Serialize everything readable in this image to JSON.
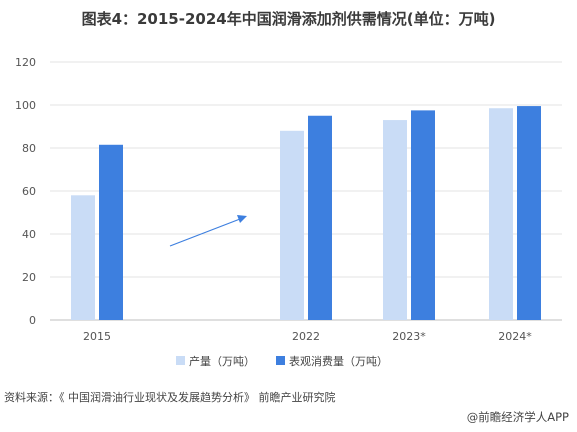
{
  "title": "图表4：2015-2024年中国润滑添加剂供需情况(单位：万吨)",
  "chart_data": {
    "type": "bar",
    "categories": [
      "2015",
      "",
      "2022",
      "2023*",
      "2024*"
    ],
    "ylim": [
      0,
      120
    ],
    "yticks": [
      0,
      20,
      40,
      60,
      80,
      100,
      120
    ],
    "grid": true,
    "legend_position": "bottom-center",
    "series": [
      {
        "name": "产量（万吨）",
        "color": "#c9dcf6",
        "values": [
          58,
          null,
          88,
          93,
          98.5
        ]
      },
      {
        "name": "表观消费量（万吨）",
        "color": "#3d7fdf",
        "values": [
          81.5,
          null,
          95,
          97.5,
          99.5
        ]
      }
    ],
    "trend_arrow": {
      "color": "#3d7fdf",
      "direction": "up"
    }
  },
  "source": "资料来源：《 中国润滑油行业现状及发展趋势分析》 前瞻产业研究院",
  "brand": "@前瞻经济学人APP"
}
